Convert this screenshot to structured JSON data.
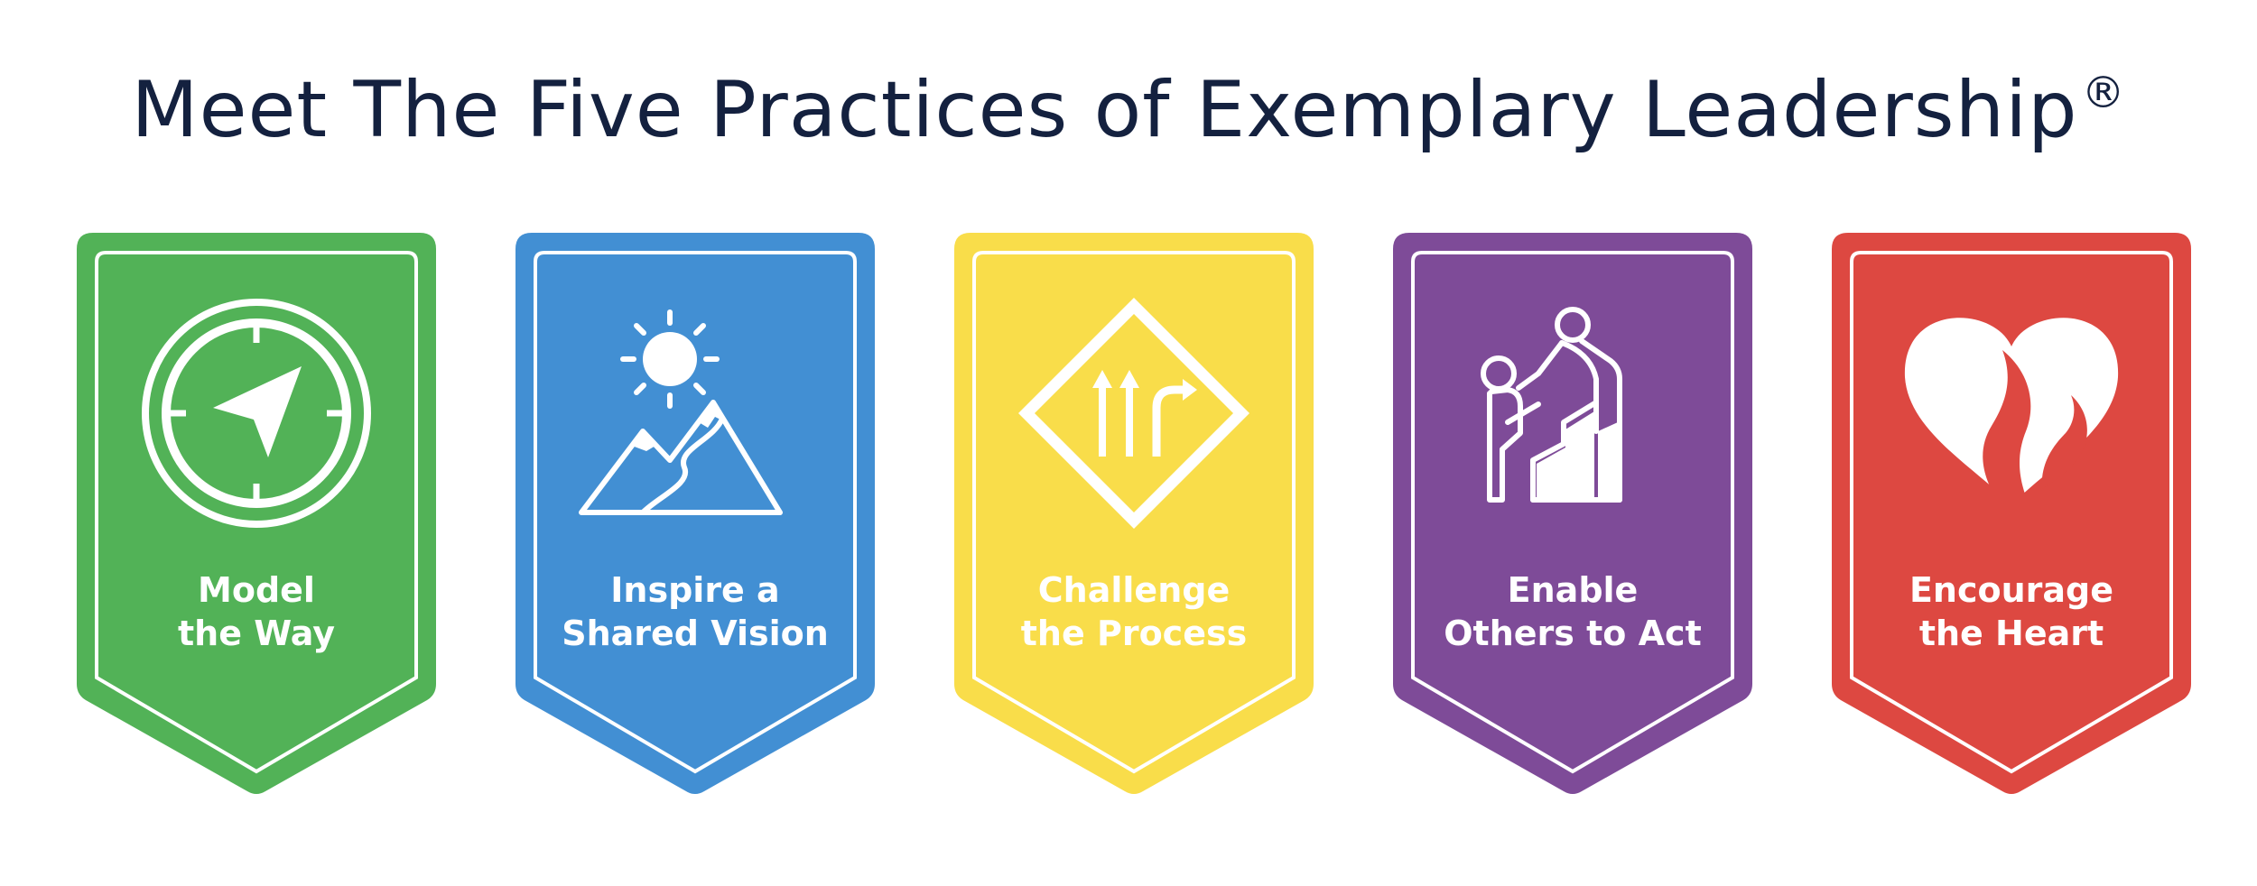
{
  "title": {
    "text": "Meet The Five Practices of Exemplary Leadership",
    "mark": "®"
  },
  "practices": [
    {
      "line1": "Model",
      "line2": "the Way",
      "color": "#52b257",
      "icon": "compass-icon"
    },
    {
      "line1": "Inspire a",
      "line2": "Shared Vision",
      "color": "#428fd3",
      "icon": "sun-mountain-icon"
    },
    {
      "line1": "Challenge",
      "line2": "the Process",
      "color": "#f9dd4a",
      "icon": "road-sign-arrows-icon"
    },
    {
      "line1": "Enable",
      "line2": "Others to Act",
      "color": "#7e4b98",
      "icon": "helping-hand-climb-icon"
    },
    {
      "line1": "Encourage",
      "line2": "the Heart",
      "color": "#dd4841",
      "icon": "heart-flame-icon"
    }
  ]
}
